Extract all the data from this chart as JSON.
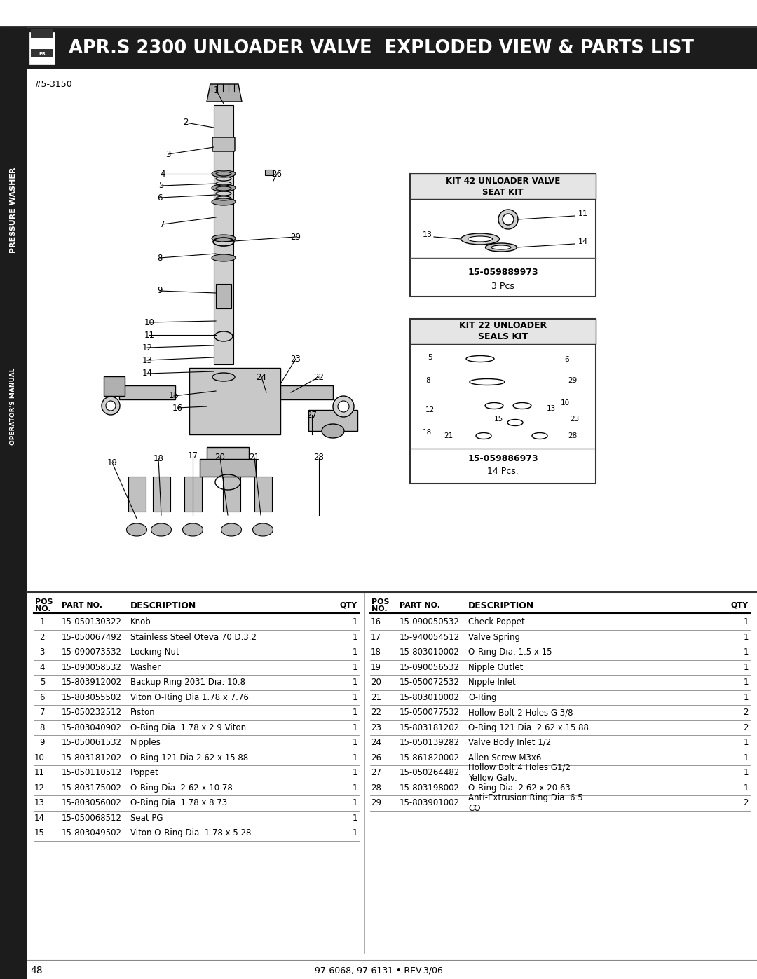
{
  "title": "APR.S 2300 UNLOADER VALVE  EXPLODED VIEW & PARTS LIST",
  "part_number": "#5-3150",
  "side_label_top": "PRESSURE WASHER",
  "side_label_bottom": "OPERATOR'S MANUAL",
  "page_number": "48",
  "footer": "97-6068, 97-6131 • REV.3/06",
  "kit42_title": "KIT 42 UNLOADER VALVE\nSEAT KIT",
  "kit42_part": "15-059889973",
  "kit42_qty": "3 Pcs",
  "kit22_title": "KIT 22 UNLOADER\nSEALS KIT",
  "kit22_part": "15-059886973",
  "kit22_qty": "14 Pcs.",
  "left_rows": [
    [
      "1",
      "15-050130322",
      "Knob",
      "1"
    ],
    [
      "2",
      "15-050067492",
      "Stainless Steel Oteva 70 D.3.2",
      "1"
    ],
    [
      "3",
      "15-090073532",
      "Locking Nut",
      "1"
    ],
    [
      "4",
      "15-090058532",
      "Washer",
      "1"
    ],
    [
      "5",
      "15-803912002",
      "Backup Ring 2031 Dia. 10.8",
      "1"
    ],
    [
      "6",
      "15-803055502",
      "Viton O-Ring Dia 1.78 x 7.76",
      "1"
    ],
    [
      "7",
      "15-050232512",
      "Piston",
      "1"
    ],
    [
      "8",
      "15-803040902",
      "O-Ring Dia. 1.78 x 2.9 Viton",
      "1"
    ],
    [
      "9",
      "15-050061532",
      "Nipples",
      "1"
    ],
    [
      "10",
      "15-803181202",
      "O-Ring 121 Dia 2.62 x 15.88",
      "1"
    ],
    [
      "11",
      "15-050110512",
      "Poppet",
      "1"
    ],
    [
      "12",
      "15-803175002",
      "O-Ring Dia. 2.62 x 10.78",
      "1"
    ],
    [
      "13",
      "15-803056002",
      "O-Ring Dia. 1.78 x 8.73",
      "1"
    ],
    [
      "14",
      "15-050068512",
      "Seat PG",
      "1"
    ],
    [
      "15",
      "15-803049502",
      "Viton O-Ring Dia. 1.78 x 5.28",
      "1"
    ]
  ],
  "right_rows": [
    [
      "16",
      "15-090050532",
      "Check Poppet",
      "1"
    ],
    [
      "17",
      "15-940054512",
      "Valve Spring",
      "1"
    ],
    [
      "18",
      "15-803010002",
      "O-Ring Dia. 1.5 x 15",
      "1"
    ],
    [
      "19",
      "15-090056532",
      "Nipple Outlet",
      "1"
    ],
    [
      "20",
      "15-050072532",
      "Nipple Inlet",
      "1"
    ],
    [
      "21",
      "15-803010002",
      "O-Ring",
      "1"
    ],
    [
      "22",
      "15-050077532",
      "Hollow Bolt 2 Holes G 3/8",
      "2"
    ],
    [
      "23",
      "15-803181202",
      "O-Ring 121 Dia. 2.62 x 15.88",
      "2"
    ],
    [
      "24",
      "15-050139282",
      "Valve Body Inlet 1/2",
      "1"
    ],
    [
      "26",
      "15-861820002",
      "Allen Screw M3x6",
      "1"
    ],
    [
      "27",
      "15-050264482",
      "Hollow Bolt 4 Holes G1/2\nYellow Galv.",
      "1"
    ],
    [
      "28",
      "15-803198002",
      "O-Ring Dia. 2.62 x 20.63",
      "1"
    ],
    [
      "29",
      "15-803901002",
      "Anti-Extrusion Ring Dia. 6.5\nCO",
      "2"
    ]
  ],
  "bg_color": "#ffffff"
}
